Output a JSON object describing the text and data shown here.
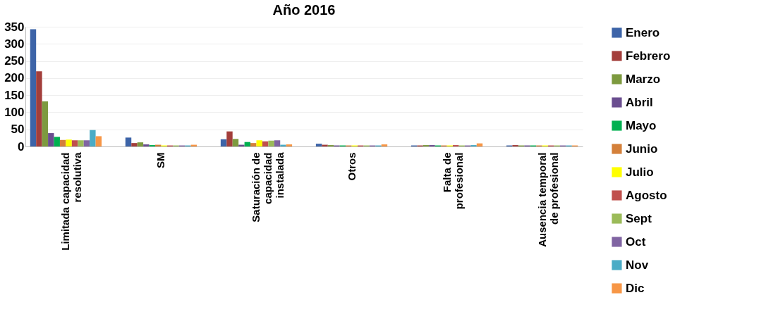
{
  "chart_data": {
    "type": "bar",
    "title": "Año 2016",
    "categories": [
      "Limitada capacidad resolutiva",
      "SM",
      "Saturación de capacidad instalada",
      "Otros",
      "Falta de profesional",
      "Ausencia temporal de profesional"
    ],
    "series": [
      {
        "name": "Enero",
        "color": "#3d64a8",
        "values": [
          343,
          26,
          21,
          8,
          3,
          3
        ]
      },
      {
        "name": "Febrero",
        "color": "#a33e3b",
        "values": [
          220,
          10,
          44,
          5,
          3,
          4
        ]
      },
      {
        "name": "Marzo",
        "color": "#7d9a3f",
        "values": [
          132,
          12,
          22,
          4,
          4,
          3
        ]
      },
      {
        "name": "Abril",
        "color": "#6a4d8f",
        "values": [
          39,
          6,
          5,
          3,
          4,
          3
        ]
      },
      {
        "name": "Mayo",
        "color": "#00b050",
        "values": [
          28,
          4,
          13,
          3,
          3,
          3
        ]
      },
      {
        "name": "Junio",
        "color": "#d4803a",
        "values": [
          19,
          5,
          10,
          3,
          3,
          3
        ]
      },
      {
        "name": "Julio",
        "color": "#ffff00",
        "values": [
          20,
          3,
          18,
          3,
          3,
          3
        ]
      },
      {
        "name": "Agosto",
        "color": "#c0504d",
        "values": [
          18,
          3,
          15,
          3,
          4,
          3
        ]
      },
      {
        "name": "Sept",
        "color": "#9bbb59",
        "values": [
          18,
          3,
          17,
          3,
          3,
          3
        ]
      },
      {
        "name": "Oct",
        "color": "#8064a2",
        "values": [
          18,
          3,
          18,
          3,
          3,
          3
        ]
      },
      {
        "name": "Nov",
        "color": "#4bacc6",
        "values": [
          48,
          3,
          5,
          3,
          4,
          3
        ]
      },
      {
        "name": "Dic",
        "color": "#f79646",
        "values": [
          30,
          5,
          6,
          6,
          9,
          3
        ]
      }
    ],
    "ylim": [
      0,
      350
    ],
    "yticks": [
      0,
      50,
      100,
      150,
      200,
      250,
      300,
      350
    ],
    "grid": "y",
    "legend": "right"
  }
}
